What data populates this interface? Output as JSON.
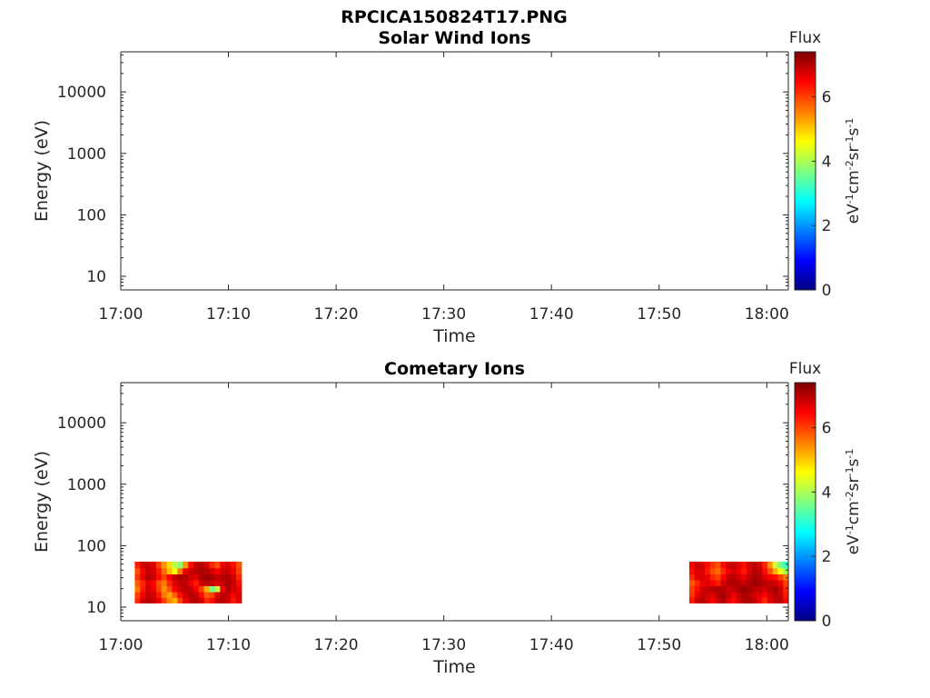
{
  "page_title": "RPCICA150824T17.PNG",
  "chart_data": [
    {
      "type": "heatmap",
      "title": "Solar Wind Ions",
      "xlabel": "Time",
      "ylabel": "Energy (eV)",
      "x_tick_labels": [
        "17:00",
        "17:10",
        "17:20",
        "17:30",
        "17:40",
        "17:50",
        "18:00"
      ],
      "xlim_minutes_after_1700": [
        0,
        62
      ],
      "y_scale": "log",
      "y_tick_labels": [
        "10",
        "100",
        "1000",
        "10000"
      ],
      "ylim": [
        6,
        45000
      ],
      "colorbar": {
        "title": "Flux",
        "unit_label": "eV-1cm-2sr-1s-1",
        "tick_labels": [
          "0",
          "2",
          "4",
          "6"
        ],
        "range": [
          0,
          7.4
        ],
        "colormap": "jet"
      },
      "blocks": []
    },
    {
      "type": "heatmap",
      "title": "Cometary Ions",
      "xlabel": "Time",
      "ylabel": "Energy (eV)",
      "x_tick_labels": [
        "17:00",
        "17:10",
        "17:20",
        "17:30",
        "17:40",
        "17:50",
        "18:00"
      ],
      "xlim_minutes_after_1700": [
        0,
        62
      ],
      "y_scale": "log",
      "y_tick_labels": [
        "10",
        "100",
        "1000",
        "10000"
      ],
      "ylim": [
        6,
        45000
      ],
      "colorbar": {
        "title": "Flux",
        "unit_label": "eV-1cm-2sr-1s-1",
        "tick_labels": [
          "0",
          "2",
          "4",
          "6"
        ],
        "range": [
          0,
          7.4
        ],
        "colormap": "jet"
      },
      "blocks": [
        {
          "t_start_min": 1.3,
          "t_end_min": 11.2,
          "energy_levels_eV": [
            13,
            16,
            20,
            25,
            31,
            39,
            49
          ],
          "flux": [
            [
              6.2,
              6.8,
              7.0,
              6.9,
              6.6,
              6.0,
              5.5,
              5.2,
              6.0,
              6.6,
              6.9,
              7.0,
              6.8,
              6.2,
              6.4,
              6.9,
              7.0,
              6.8,
              6.3,
              6.7
            ],
            [
              6.0,
              6.5,
              6.9,
              6.8,
              6.3,
              5.6,
              5.3,
              5.8,
              6.4,
              6.8,
              7.0,
              6.9,
              6.4,
              5.8,
              6.0,
              6.7,
              7.0,
              6.9,
              6.5,
              6.8
            ],
            [
              5.6,
              6.3,
              6.8,
              6.6,
              6.0,
              5.4,
              5.9,
              6.5,
              6.8,
              7.0,
              6.9,
              6.5,
              6.0,
              5.2,
              3.6,
              4.2,
              6.6,
              7.0,
              6.8,
              6.6
            ],
            [
              5.8,
              6.2,
              6.7,
              6.5,
              5.9,
              5.6,
              6.2,
              6.7,
              7.0,
              6.9,
              6.6,
              6.3,
              6.8,
              7.0,
              6.9,
              6.7,
              6.9,
              7.1,
              6.9,
              6.4
            ],
            [
              6.1,
              6.6,
              7.0,
              6.9,
              6.4,
              6.0,
              6.5,
              6.9,
              7.1,
              7.0,
              6.8,
              6.7,
              7.1,
              7.2,
              7.1,
              6.9,
              7.0,
              7.1,
              6.8,
              6.2
            ],
            [
              5.9,
              6.5,
              6.9,
              6.8,
              6.3,
              5.7,
              5.1,
              4.6,
              5.6,
              6.6,
              6.9,
              7.0,
              7.1,
              7.0,
              6.8,
              6.5,
              6.8,
              6.9,
              6.6,
              6.0
            ],
            [
              6.3,
              6.8,
              6.9,
              6.7,
              6.0,
              5.4,
              4.9,
              4.1,
              3.8,
              5.4,
              6.4,
              6.9,
              7.0,
              6.8,
              6.2,
              5.9,
              6.6,
              6.8,
              6.4,
              5.9
            ]
          ]
        },
        {
          "t_start_min": 52.8,
          "t_end_min": 62.0,
          "energy_levels_eV": [
            13,
            16,
            20,
            25,
            31,
            39,
            49
          ],
          "flux": [
            [
              6.3,
              6.9,
              7.0,
              6.8,
              6.5,
              6.9,
              7.0,
              6.7,
              6.4,
              6.8,
              7.0,
              7.1,
              6.9,
              6.6,
              6.2,
              6.7,
              6.9,
              7.0,
              6.5
            ],
            [
              6.1,
              6.6,
              6.9,
              6.8,
              6.7,
              7.0,
              7.1,
              6.9,
              6.6,
              6.9,
              7.1,
              7.0,
              6.8,
              6.7,
              6.5,
              6.8,
              7.0,
              6.9,
              6.3
            ],
            [
              6.0,
              6.4,
              6.8,
              6.9,
              7.0,
              7.1,
              7.0,
              6.8,
              6.9,
              7.1,
              7.2,
              7.1,
              7.0,
              6.9,
              6.8,
              7.0,
              7.1,
              6.8,
              6.2
            ],
            [
              5.8,
              6.2,
              6.6,
              6.7,
              6.5,
              6.3,
              6.8,
              7.0,
              7.1,
              7.0,
              6.9,
              7.0,
              7.2,
              7.1,
              7.0,
              6.9,
              6.8,
              6.6,
              6.0
            ],
            [
              6.2,
              6.7,
              6.8,
              6.6,
              6.2,
              6.0,
              6.5,
              6.9,
              7.0,
              6.8,
              6.6,
              6.9,
              7.1,
              7.0,
              6.7,
              6.5,
              6.4,
              6.0,
              5.6
            ],
            [
              6.4,
              6.8,
              6.7,
              6.3,
              5.9,
              5.7,
              6.2,
              6.6,
              6.8,
              6.6,
              6.3,
              6.7,
              7.0,
              6.9,
              6.4,
              5.9,
              5.2,
              4.6,
              4.0
            ],
            [
              6.5,
              6.9,
              6.8,
              6.4,
              6.1,
              5.9,
              6.4,
              6.8,
              6.9,
              6.7,
              6.4,
              6.8,
              7.0,
              6.8,
              6.2,
              5.4,
              4.3,
              3.6,
              3.2
            ]
          ]
        }
      ]
    }
  ]
}
